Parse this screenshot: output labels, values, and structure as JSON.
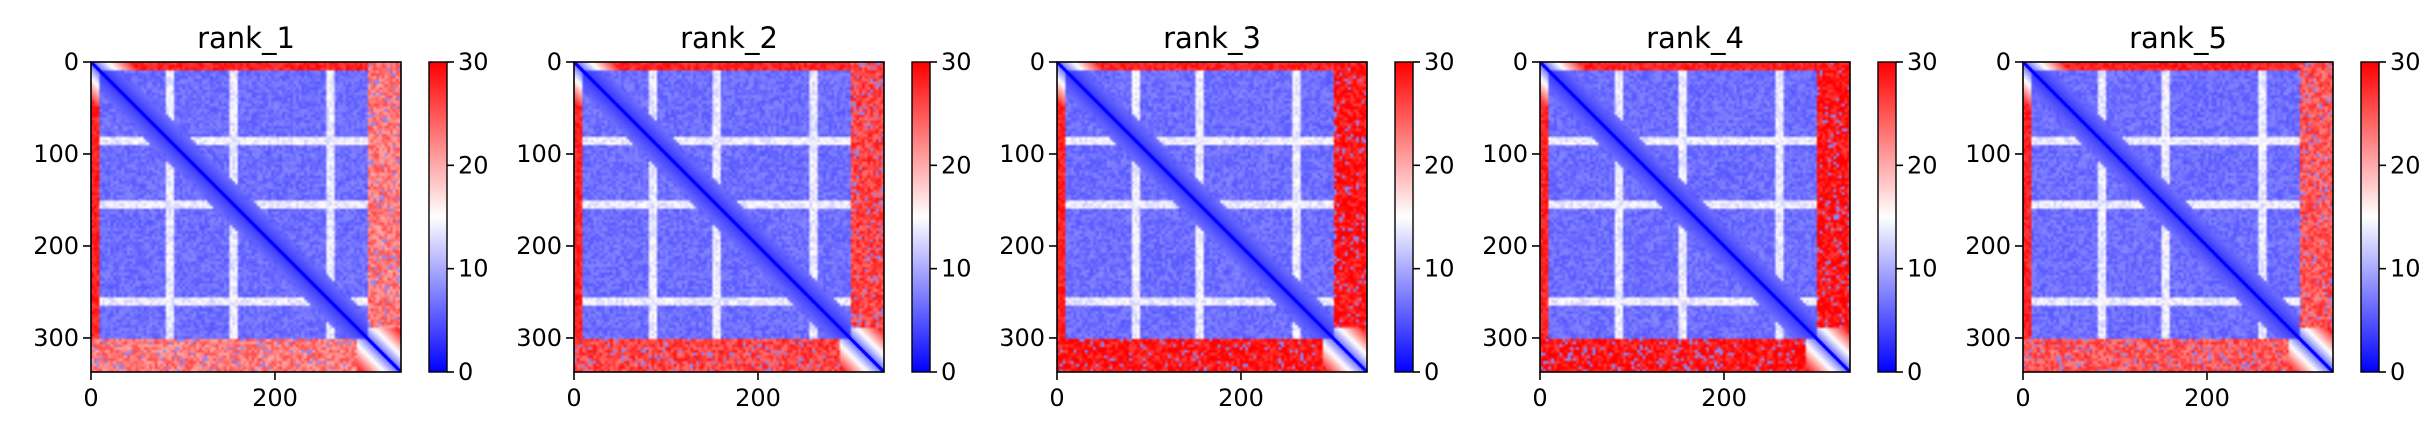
{
  "colors": {
    "low": "#0000ff",
    "mid": "#ffffff",
    "high": "#ff0000",
    "axis": "#000000"
  },
  "chart_data": [
    {
      "type": "heatmap",
      "title": "rank_1",
      "xlabel": "",
      "ylabel": "",
      "matrix_size": 337,
      "xlim": [
        0,
        337
      ],
      "ylim": [
        337,
        0
      ],
      "x_ticks": [
        0,
        200
      ],
      "x_tick_labels": [
        "0",
        "200"
      ],
      "y_ticks": [
        0,
        100,
        200,
        300
      ],
      "y_tick_labels": [
        "0",
        "100",
        "200",
        "300"
      ],
      "colorbar": {
        "range": [
          0,
          30
        ],
        "ticks": [
          0,
          10,
          20,
          30
        ],
        "tick_labels": [
          "0",
          "10",
          "20",
          "30"
        ],
        "colormap": "bwr"
      },
      "description_data": {
        "diagonal_value": 0,
        "core_block_range": [
          10,
          300
        ],
        "core_block_value": 5,
        "border_value": 30,
        "light_stripe_rows": [
          85,
          155,
          260
        ],
        "bottom_band_rows": [
          300,
          337
        ],
        "bottom_band_value": 22
      }
    },
    {
      "type": "heatmap",
      "title": "rank_2",
      "xlabel": "",
      "ylabel": "",
      "matrix_size": 337,
      "xlim": [
        0,
        337
      ],
      "ylim": [
        337,
        0
      ],
      "x_ticks": [
        0,
        200
      ],
      "x_tick_labels": [
        "0",
        "200"
      ],
      "y_ticks": [
        0,
        100,
        200,
        300
      ],
      "y_tick_labels": [
        "0",
        "100",
        "200",
        "300"
      ],
      "colorbar": {
        "range": [
          0,
          30
        ],
        "ticks": [
          0,
          10,
          20,
          30
        ],
        "tick_labels": [
          "0",
          "10",
          "20",
          "30"
        ],
        "colormap": "bwr"
      },
      "description_data": {
        "diagonal_value": 0,
        "core_block_range": [
          10,
          300
        ],
        "core_block_value": 5,
        "border_value": 30,
        "light_stripe_rows": [
          85,
          155,
          260
        ],
        "bottom_band_rows": [
          300,
          337
        ],
        "bottom_band_value": 25
      }
    },
    {
      "type": "heatmap",
      "title": "rank_3",
      "xlabel": "",
      "ylabel": "",
      "matrix_size": 337,
      "xlim": [
        0,
        337
      ],
      "ylim": [
        337,
        0
      ],
      "x_ticks": [
        0,
        200
      ],
      "x_tick_labels": [
        "0",
        "200"
      ],
      "y_ticks": [
        0,
        100,
        200,
        300
      ],
      "y_tick_labels": [
        "0",
        "100",
        "200",
        "300"
      ],
      "colorbar": {
        "range": [
          0,
          30
        ],
        "ticks": [
          0,
          10,
          20,
          30
        ],
        "tick_labels": [
          "0",
          "10",
          "20",
          "30"
        ],
        "colormap": "bwr"
      },
      "description_data": {
        "diagonal_value": 0,
        "core_block_range": [
          10,
          300
        ],
        "core_block_value": 5,
        "border_value": 30,
        "light_stripe_rows": [
          85,
          155,
          260
        ],
        "bottom_band_rows": [
          300,
          337
        ],
        "bottom_band_value": 28
      }
    },
    {
      "type": "heatmap",
      "title": "rank_4",
      "xlabel": "",
      "ylabel": "",
      "matrix_size": 337,
      "xlim": [
        0,
        337
      ],
      "ylim": [
        337,
        0
      ],
      "x_ticks": [
        0,
        200
      ],
      "x_tick_labels": [
        "0",
        "200"
      ],
      "y_ticks": [
        0,
        100,
        200,
        300
      ],
      "y_tick_labels": [
        "0",
        "100",
        "200",
        "300"
      ],
      "colorbar": {
        "range": [
          0,
          30
        ],
        "ticks": [
          0,
          10,
          20,
          30
        ],
        "tick_labels": [
          "0",
          "10",
          "20",
          "30"
        ],
        "colormap": "bwr"
      },
      "description_data": {
        "diagonal_value": 0,
        "core_block_range": [
          10,
          300
        ],
        "core_block_value": 5,
        "border_value": 30,
        "light_stripe_rows": [
          85,
          155,
          260
        ],
        "bottom_band_rows": [
          300,
          337
        ],
        "bottom_band_value": 28
      }
    },
    {
      "type": "heatmap",
      "title": "rank_5",
      "xlabel": "",
      "ylabel": "",
      "matrix_size": 337,
      "xlim": [
        0,
        337
      ],
      "ylim": [
        337,
        0
      ],
      "x_ticks": [
        0,
        200
      ],
      "x_tick_labels": [
        "0",
        "200"
      ],
      "y_ticks": [
        0,
        100,
        200,
        300
      ],
      "y_tick_labels": [
        "0",
        "100",
        "200",
        "300"
      ],
      "colorbar": {
        "range": [
          0,
          30
        ],
        "ticks": [
          0,
          10,
          20,
          30
        ],
        "tick_labels": [
          "0",
          "10",
          "20",
          "30"
        ],
        "colormap": "bwr"
      },
      "description_data": {
        "diagonal_value": 0,
        "core_block_range": [
          10,
          300
        ],
        "core_block_value": 5,
        "border_value": 30,
        "light_stripe_rows": [
          85,
          155,
          260
        ],
        "bottom_band_rows": [
          300,
          337
        ],
        "bottom_band_value": 24
      }
    }
  ]
}
